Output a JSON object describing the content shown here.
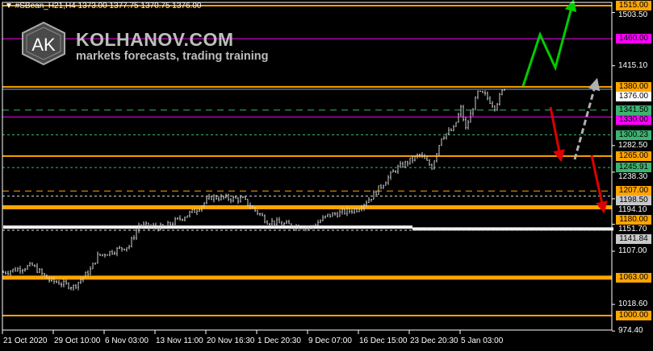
{
  "header": {
    "symbol": "#SBean_H21,H4",
    "ohlc": "1373.00 1377.75 1370.75 1376.00"
  },
  "branding": {
    "logo_letters": "AK",
    "site": "KOLHANOV.COM",
    "tagline": "markets forecasts, trading training"
  },
  "colors": {
    "background": "#000000",
    "bars": "#d0d0d0",
    "orange": "#ffa500",
    "magenta": "#ff00ff",
    "green_level": "#3cb371",
    "gray_label": "#c8c8c8",
    "up_arrow": "#00cc00",
    "down_arrow": "#dd0000",
    "gray_arrow": "#b0b0b0"
  },
  "chart_data": {
    "type": "line",
    "title": "",
    "ylim": [
      960,
      1520
    ],
    "y_ticks": [
      "1503.50",
      "1415.10",
      "1282.50",
      "1238.30",
      "1194.10",
      "1151.70",
      "1107.00",
      "1018.60",
      "974.40"
    ],
    "x_ticks": [
      "21 Oct 2020",
      "29 Oct 10:00",
      "6 Nov 03:00",
      "13 Nov 11:00",
      "20 Nov 16:30",
      "1 Dec 20:30",
      "9 Dec 07:00",
      "16 Dec 15:00",
      "23 Dec 20:30",
      "5 Jan 03:00"
    ],
    "price_path": [
      [
        0,
        1072
      ],
      [
        12,
        1083
      ],
      [
        19,
        1059
      ],
      [
        29,
        1048
      ],
      [
        36,
        1076
      ],
      [
        39,
        1099
      ],
      [
        52,
        1116
      ],
      [
        56,
        1150
      ],
      [
        66,
        1146
      ],
      [
        79,
        1174
      ],
      [
        86,
        1197
      ],
      [
        99,
        1193
      ],
      [
        109,
        1157
      ],
      [
        119,
        1150
      ],
      [
        127,
        1147
      ],
      [
        134,
        1166
      ],
      [
        146,
        1177
      ],
      [
        152,
        1197
      ],
      [
        162,
        1243
      ],
      [
        172,
        1267
      ],
      [
        177,
        1247
      ],
      [
        181,
        1297
      ],
      [
        186,
        1310
      ],
      [
        189,
        1344
      ],
      [
        191,
        1310
      ],
      [
        196,
        1370
      ],
      [
        199,
        1366
      ],
      [
        203,
        1347
      ],
      [
        207,
        1380
      ]
    ],
    "levels": [
      {
        "price": 1515.0,
        "label": "1515.00",
        "color": "orange",
        "style": "solid",
        "weight": "medium"
      },
      {
        "price": 1460.0,
        "label": "1460.00",
        "color": "magenta",
        "style": "solid",
        "weight": "thin"
      },
      {
        "price": 1380.0,
        "label": "1380.00",
        "color": "orange",
        "style": "solid",
        "weight": "medium"
      },
      {
        "price": 1376.0,
        "label": "1376.00",
        "color": "gray",
        "style": "solid",
        "weight": "thin"
      },
      {
        "price": 1341.5,
        "label": "1341.50",
        "color": "green",
        "style": "dashed",
        "weight": "thin"
      },
      {
        "price": 1330.0,
        "label": "1330.00",
        "color": "magenta",
        "style": "solid",
        "weight": "thin"
      },
      {
        "price": 1300.23,
        "label": "1300.23",
        "color": "green",
        "style": "dotted",
        "weight": "thin"
      },
      {
        "price": 1265.0,
        "label": "1265.00",
        "color": "orange",
        "style": "solid",
        "weight": "medium"
      },
      {
        "price": 1245.91,
        "label": "1245.91",
        "color": "green",
        "style": "dotted",
        "weight": "thin"
      },
      {
        "price": 1207.0,
        "label": "1207.00",
        "color": "orange",
        "style": "dashed",
        "weight": "thin"
      },
      {
        "price": 1198.5,
        "label": "1198.50",
        "color": "white",
        "style": "dotted",
        "weight": "thin"
      },
      {
        "price": 1180.0,
        "label": "1180.00",
        "color": "orange",
        "style": "solid",
        "weight": "thick"
      },
      {
        "price": 1141.84,
        "label": "1141.84",
        "color": "white",
        "style": "dotted",
        "weight": "thin"
      },
      {
        "price": 1063.0,
        "label": "1063.00",
        "color": "orange",
        "style": "solid",
        "weight": "thick"
      },
      {
        "price": 1000.0,
        "label": "1000.00",
        "color": "orange",
        "style": "solid",
        "weight": "medium"
      }
    ],
    "support_band": [
      {
        "price": 1147,
        "until_bar": 169
      },
      {
        "price": 1144,
        "until_bar": 252
      }
    ]
  }
}
